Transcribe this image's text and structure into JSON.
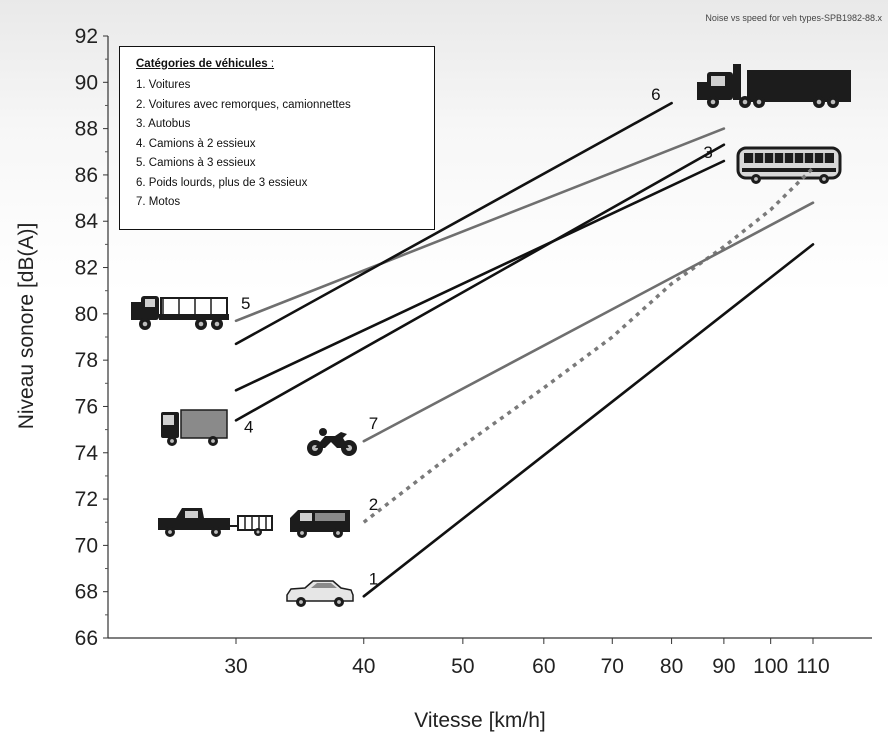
{
  "watermark": "Noise vs speed for veh types-SPB1982-88.x",
  "legend": {
    "title": "Catégories de véhicules",
    "title_suffix": " :",
    "items": [
      "1. Voitures",
      "2. Voitures avec remorques, camionnettes",
      "3. Autobus",
      "4. Camions à 2 essieux",
      "5. Camions à 3 essieux",
      "6. Poids lourds, plus de 3 essieux",
      "7. Motos"
    ]
  },
  "colors": {
    "dark_line": "#111111",
    "grey_line": "#6f6f6f",
    "dotted_line": "#7a7a7a",
    "vehicle_icon": "#1c1c1c"
  },
  "chart_data": {
    "type": "line",
    "title": "",
    "xlabel": "Vitesse [km/h]",
    "ylabel": "Niveau sonore [dB(A)]",
    "x_scale": "log",
    "xlim": [
      20,
      130
    ],
    "ylim": [
      66,
      92
    ],
    "x_ticks": [
      30,
      40,
      50,
      60,
      70,
      80,
      90,
      100,
      110
    ],
    "y_ticks": [
      66,
      68,
      70,
      72,
      74,
      76,
      78,
      80,
      82,
      84,
      86,
      88,
      90,
      92
    ],
    "grid": false,
    "legend_position": "top-left",
    "series": [
      {
        "name": "1",
        "style": "solid",
        "color": "#111111",
        "label_at": "start",
        "x": [
          40,
          110
        ],
        "y": [
          67.8,
          83.0
        ]
      },
      {
        "name": "2",
        "style": "dotted",
        "color": "#7a7a7a",
        "label_at": "start",
        "x": [
          40,
          50,
          60,
          70,
          80,
          90,
          100,
          110
        ],
        "y": [
          71.0,
          74.3,
          76.8,
          79.0,
          81.3,
          82.9,
          84.5,
          86.3
        ]
      },
      {
        "name": "3",
        "style": "solid",
        "color": "#111111",
        "label_at": "end",
        "x": [
          30,
          90
        ],
        "y": [
          76.7,
          86.6
        ]
      },
      {
        "name": "4",
        "style": "solid",
        "color": "#111111",
        "label_at": "start",
        "x": [
          30,
          90
        ],
        "y": [
          75.4,
          87.3
        ]
      },
      {
        "name": "5",
        "style": "solid",
        "color": "#6f6f6f",
        "label_at": "start",
        "x": [
          30,
          90
        ],
        "y": [
          79.7,
          88.0
        ]
      },
      {
        "name": "6",
        "style": "solid",
        "color": "#111111",
        "label_at": "end",
        "x": [
          30,
          80
        ],
        "y": [
          78.7,
          89.1
        ]
      },
      {
        "name": "7",
        "style": "solid",
        "color": "#6f6f6f",
        "label_at": "start",
        "x": [
          40,
          110
        ],
        "y": [
          74.5,
          84.8
        ]
      }
    ]
  },
  "vehicle_icons": [
    {
      "name": "three-axle-truck-icon",
      "series": "5"
    },
    {
      "name": "two-axle-truck-icon",
      "series": "4"
    },
    {
      "name": "pickup-with-trailer-icon",
      "series": "2"
    },
    {
      "name": "van-icon",
      "series": "2"
    },
    {
      "name": "motorcycle-icon",
      "series": "7"
    },
    {
      "name": "car-icon",
      "series": "1"
    },
    {
      "name": "semi-truck-icon",
      "series": "6"
    },
    {
      "name": "bus-icon",
      "series": "3"
    }
  ]
}
